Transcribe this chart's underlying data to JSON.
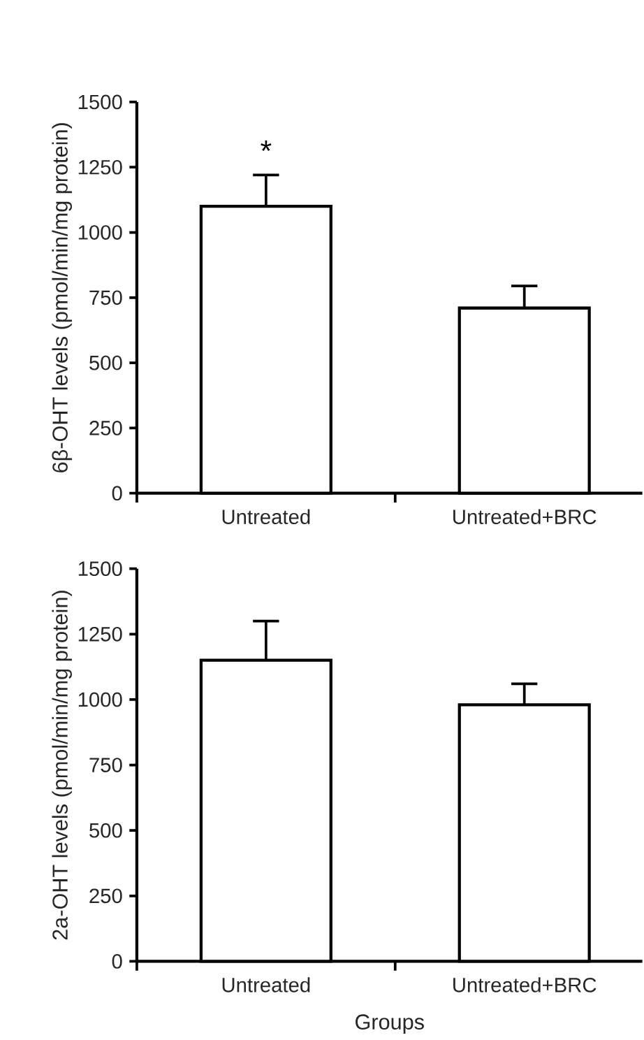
{
  "chart_data": [
    {
      "type": "bar",
      "ylabel": "6β-OHT levels (pmol/min/mg protein)",
      "categories": [
        "Untreated",
        "Untreated+BRC"
      ],
      "values": [
        1100,
        710
      ],
      "errors": [
        120,
        85
      ],
      "color": "#ffffff",
      "ylim": [
        0,
        1500
      ],
      "yticks": [
        0,
        250,
        500,
        750,
        1000,
        1250,
        1500
      ],
      "annotations": [
        "*"
      ]
    },
    {
      "type": "bar",
      "ylabel": "2a-OHT levels (pmol/min/mg protein)",
      "xlabel": "Groups",
      "categories": [
        "Untreated",
        "Untreated+BRC"
      ],
      "values": [
        1150,
        980
      ],
      "errors": [
        150,
        80
      ],
      "color": "#ffffff",
      "ylim": [
        0,
        1500
      ],
      "yticks": [
        0,
        250,
        500,
        750,
        1000,
        1250,
        1500
      ]
    }
  ]
}
